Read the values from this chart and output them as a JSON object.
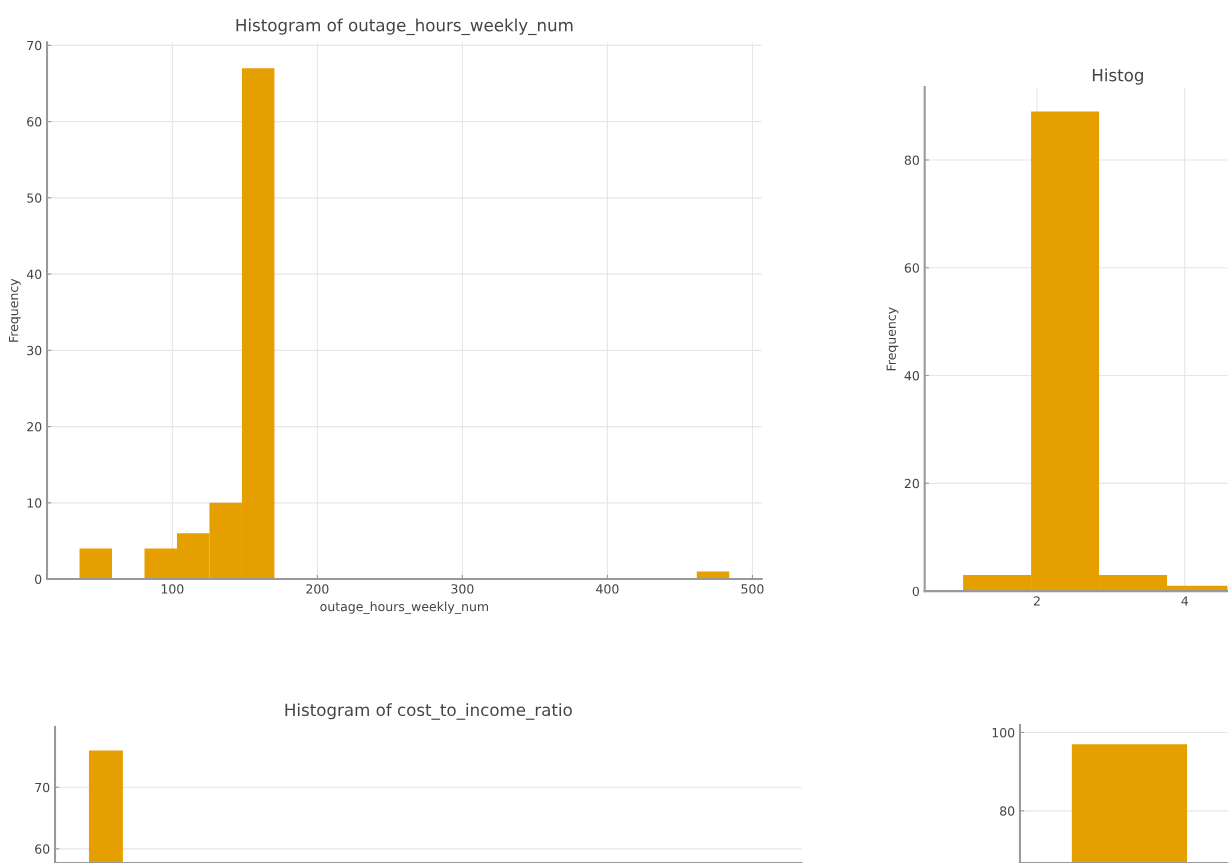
{
  "chart_data": [
    {
      "type": "histogram",
      "title": "Histogram of outage_hours_weekly_num",
      "xlabel": "outage_hours_weekly_num",
      "ylabel": "Frequency",
      "color": "#e69f00",
      "bins": [
        36,
        58.4,
        80.8,
        103.2,
        125.6,
        148,
        170.4,
        192.8,
        215.2,
        237.6,
        260,
        282.4,
        304.8,
        327.2,
        349.6,
        372,
        394.4,
        416.8,
        439.2,
        461.6,
        484
      ],
      "values": [
        4,
        0,
        4,
        6,
        10,
        67,
        0,
        0,
        0,
        0,
        0,
        0,
        0,
        0,
        0,
        0,
        0,
        0,
        0,
        1
      ],
      "xlim": [
        13.6,
        506.4
      ],
      "xticks": [
        100,
        200,
        300,
        400,
        500
      ],
      "ylim": [
        0,
        70.4
      ],
      "yticks": [
        0,
        10,
        20,
        30,
        40,
        50,
        60,
        70
      ],
      "grid": true
    },
    {
      "type": "histogram",
      "title": "Histog",
      "ylabel": "Frequency",
      "color": "#e69f00",
      "bins": [
        1.0,
        1.92,
        2.84,
        3.76,
        4.58
      ],
      "values": [
        3,
        89,
        3,
        1
      ],
      "xlim": [
        0.48,
        4.58
      ],
      "xticks": [
        2,
        4
      ],
      "ylim": [
        0,
        93.5
      ],
      "yticks": [
        0,
        20,
        40,
        60,
        80
      ],
      "grid": true
    },
    {
      "type": "bar",
      "title": "Histogram of cost_to_income_ratio",
      "color": "#e69f00",
      "categories": [
        null
      ],
      "values": [
        76
      ],
      "ylim": [
        57.7,
        79.8
      ],
      "yticks": [
        60,
        70
      ],
      "grid": "y"
    },
    {
      "type": "bar",
      "color": "#e69f00",
      "categories": [
        null
      ],
      "values": [
        97
      ],
      "ylim": [
        66.7,
        101.9
      ],
      "yticks": [
        80,
        100
      ],
      "grid": "y"
    }
  ]
}
